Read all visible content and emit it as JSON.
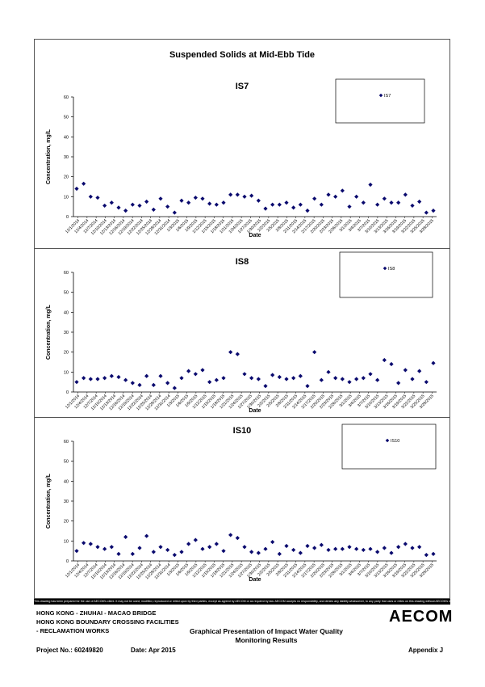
{
  "page_title": "Suspended Solids at Mid-Ebb Tide",
  "disclaimer": "This drawing has been prepared for the use of AECOM's client. It may not be used, modified, reproduced or relied upon by third parties, except as agreed by AECOM or as required by law. AECOM accepts no responsibility, and denies any liability whatsoever, to any party that uses or relies on this drawing without AECOM's express written consent.",
  "footer": {
    "project_line1": "HONG KONG - ZHUHAI - MACAO BRIDGE",
    "project_line2": "HONG KONG BOUNDARY CROSSING FACILITIES",
    "project_line3": "- RECLAMATION WORKS",
    "logo": "AECOM",
    "doc_title_line1": "Graphical Presentation of Impact Water Quality",
    "doc_title_line2": "Monitoring Results",
    "project_no": "Project No.: 60249820",
    "date": "Date: Apr 2015",
    "appendix": "Appendix J"
  },
  "colors": {
    "marker": "#0a0a6e"
  },
  "chart_data": [
    {
      "type": "scatter",
      "title": "IS7",
      "xlabel": "Date",
      "ylabel": "Concentration, mg/L",
      "ylim": [
        0,
        60
      ],
      "yticks": [
        0,
        10,
        20,
        30,
        40,
        50,
        60
      ],
      "legend_position": "top-right",
      "grid": false,
      "series": [
        {
          "name": "IS7",
          "values": [
            14,
            16.5,
            10,
            9.5,
            5.5,
            7,
            4.5,
            3,
            6,
            5.5,
            7.5,
            3.5,
            9,
            5,
            2,
            8,
            7,
            9.5,
            9,
            6.5,
            6,
            7,
            11,
            11,
            10,
            10.5,
            8,
            4,
            6,
            6,
            7,
            4.5,
            6,
            3,
            9,
            6,
            11,
            10,
            13,
            5,
            10,
            7,
            16,
            6,
            9,
            7,
            7,
            11,
            5.5,
            7.5,
            2,
            3
          ]
        }
      ],
      "x_tick_labels": [
        "12/1/2014",
        "12/4/2014",
        "12/7/2014",
        "12/10/2014",
        "12/13/2014",
        "12/16/2014",
        "12/19/2014",
        "12/22/2014",
        "12/25/2014",
        "12/28/2014",
        "12/31/2014",
        "1/3/2015",
        "1/6/2015",
        "1/9/2015",
        "1/12/2015",
        "1/15/2015",
        "1/18/2015",
        "1/21/2015",
        "1/24/2015",
        "1/27/2015",
        "1/30/2015",
        "2/2/2015",
        "2/5/2015",
        "2/8/2015",
        "2/11/2015",
        "2/14/2015",
        "2/17/2015",
        "2/20/2015",
        "2/23/2015",
        "2/26/2015",
        "3/1/2015",
        "3/4/2015",
        "3/7/2015",
        "3/10/2015",
        "3/13/2015",
        "3/16/2015",
        "3/19/2015",
        "3/22/2015",
        "3/25/2015",
        "3/28/2015"
      ]
    },
    {
      "type": "scatter",
      "title": "IS8",
      "xlabel": "Date",
      "ylabel": "Concentration, mg/L",
      "ylim": [
        0,
        60
      ],
      "yticks": [
        0,
        10,
        20,
        30,
        40,
        50,
        60
      ],
      "legend_position": "top-right",
      "grid": false,
      "series": [
        {
          "name": "IS8",
          "values": [
            5,
            7,
            6.5,
            6.5,
            7,
            8,
            7.5,
            6,
            4.5,
            3.5,
            8,
            3.5,
            8,
            4.5,
            2,
            7,
            10.5,
            9,
            11,
            5,
            6,
            7,
            20,
            19,
            9,
            7,
            6.5,
            3,
            8.5,
            7.5,
            6.5,
            7,
            8,
            3,
            20,
            6,
            10,
            7,
            6.5,
            5,
            6.5,
            7,
            9,
            6,
            16,
            14,
            4.5,
            11,
            6.5,
            10.5,
            5,
            14.5
          ]
        }
      ],
      "x_tick_labels": [
        "12/1/2014",
        "12/4/2014",
        "12/7/2014",
        "12/10/2014",
        "12/13/2014",
        "12/16/2014",
        "12/19/2014",
        "12/22/2014",
        "12/25/2014",
        "12/28/2014",
        "12/31/2014",
        "1/3/2015",
        "1/6/2015",
        "1/9/2015",
        "1/12/2015",
        "1/15/2015",
        "1/18/2015",
        "1/21/2015",
        "1/24/2015",
        "1/27/2015",
        "1/30/2015",
        "2/2/2015",
        "2/5/2015",
        "2/8/2015",
        "2/11/2015",
        "2/14/2015",
        "2/17/2015",
        "2/20/2015",
        "2/23/2015",
        "2/26/2015",
        "3/1/2015",
        "3/4/2015",
        "3/7/2015",
        "3/10/2015",
        "3/13/2015",
        "3/16/2015",
        "3/19/2015",
        "3/22/2015",
        "3/25/2015",
        "3/28/2015"
      ]
    },
    {
      "type": "scatter",
      "title": "IS10",
      "xlabel": "Date",
      "ylabel": "Concentration, mg/L",
      "ylim": [
        0,
        60
      ],
      "yticks": [
        0,
        10,
        20,
        30,
        40,
        50,
        60
      ],
      "legend_position": "top-right",
      "grid": false,
      "series": [
        {
          "name": "IS10",
          "values": [
            5,
            9,
            8.5,
            7,
            6,
            7,
            3.5,
            12,
            3.5,
            6.5,
            12.5,
            4.5,
            7,
            5.5,
            3,
            4.5,
            8.5,
            10.5,
            6,
            7,
            8.5,
            5,
            13,
            11.5,
            7,
            4.5,
            4,
            6,
            9.5,
            3.5,
            7.5,
            5.5,
            4,
            7.5,
            6.5,
            8,
            5.5,
            6,
            6,
            7,
            6,
            5.5,
            6,
            4.5,
            6.5,
            4,
            7,
            8.5,
            6.5,
            7,
            3,
            3.5
          ]
        }
      ],
      "x_tick_labels": [
        "12/1/2014",
        "12/4/2014",
        "12/7/2014",
        "12/10/2014",
        "12/13/2014",
        "12/16/2014",
        "12/19/2014",
        "12/22/2014",
        "12/25/2014",
        "12/28/2014",
        "12/31/2014",
        "1/3/2015",
        "1/6/2015",
        "1/9/2015",
        "1/12/2015",
        "1/15/2015",
        "1/18/2015",
        "1/21/2015",
        "1/24/2015",
        "1/27/2015",
        "1/30/2015",
        "2/2/2015",
        "2/5/2015",
        "2/8/2015",
        "2/11/2015",
        "2/14/2015",
        "2/17/2015",
        "2/20/2015",
        "2/23/2015",
        "2/26/2015",
        "3/1/2015",
        "3/4/2015",
        "3/7/2015",
        "3/10/2015",
        "3/13/2015",
        "3/16/2015",
        "3/19/2015",
        "3/22/2015",
        "3/25/2015",
        "3/28/2015"
      ]
    }
  ]
}
